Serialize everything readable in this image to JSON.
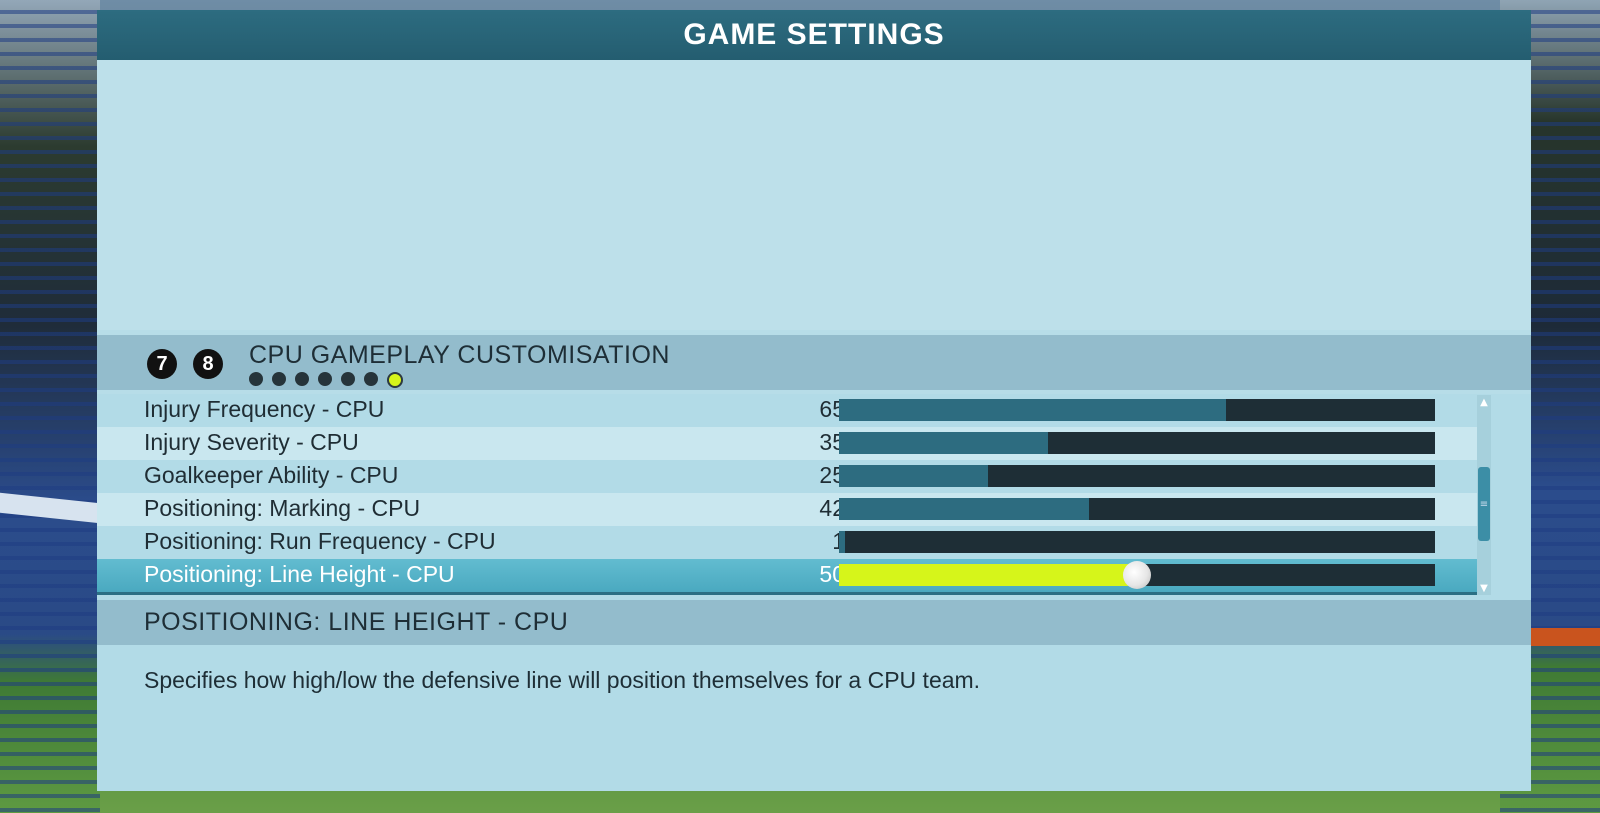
{
  "header": {
    "title": "GAME SETTINGS"
  },
  "section": {
    "prev_button": "7",
    "next_button": "8",
    "title": "CPU GAMEPLAY CUSTOMISATION",
    "page_count": 7,
    "active_page": 7
  },
  "settings": [
    {
      "label": "Injury Frequency - CPU",
      "value": "65",
      "level": 65
    },
    {
      "label": "Injury Severity - CPU",
      "value": "35",
      "level": 35
    },
    {
      "label": "Goalkeeper Ability - CPU",
      "value": "25",
      "level": 25
    },
    {
      "label": "Positioning: Marking - CPU",
      "value": "42",
      "level": 42
    },
    {
      "label": "Positioning: Run Frequency - CPU",
      "value": "1",
      "level": 1
    },
    {
      "label": "Positioning: Line Height - CPU",
      "value": "50",
      "level": 50
    }
  ],
  "selected_index": 5,
  "description": {
    "title": "POSITIONING: LINE HEIGHT - CPU",
    "text": "Specifies how high/low the defensive line will position themselves for a CPU team."
  },
  "colors": {
    "header": "#2d6c80",
    "fill": "#2d6c80",
    "active_fill": "#d6f51a",
    "track": "#1e2e36"
  },
  "icons": {
    "scroll_up": "scroll-up-arrow-icon",
    "scroll_down": "scroll-down-arrow-icon"
  }
}
